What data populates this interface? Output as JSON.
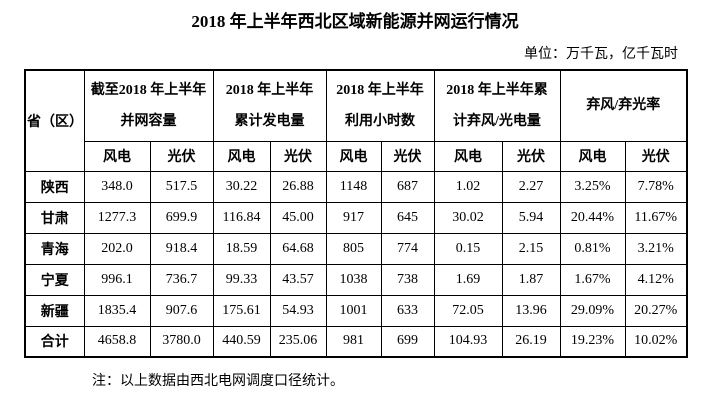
{
  "title": "2018 年上半年西北区域新能源并网运行情况",
  "unit_note": "单位：万千瓦，亿千瓦时",
  "footnote": "注：以上数据由西北电网调度口径统计。",
  "colors": {
    "text": "#000000",
    "border": "#000000",
    "background": "#ffffff"
  },
  "table": {
    "corner_header": "省（区）",
    "groups": [
      {
        "label": "截至2018 年上半年并网容量",
        "line1": "截至2018 年上半年",
        "line2": "并网容量"
      },
      {
        "label": "2018 年上半年累计发电量",
        "line1": "2018 年上半年",
        "line2": "累计发电量"
      },
      {
        "label": "2018 年上半年利用小时数",
        "line1": "2018 年上半年",
        "line2": "利用小时数"
      },
      {
        "label": "2018 年上半年累计弃风/光电量",
        "line1": "2018 年上半年累",
        "line2": "计弃风/光电量"
      },
      {
        "label": "弃风/弃光率",
        "line1": "弃风/弃光率",
        "line2": ""
      }
    ],
    "sub_headers": [
      "风电",
      "光伏"
    ],
    "rows": [
      {
        "province": "陕西",
        "values": [
          "348.0",
          "517.5",
          "30.22",
          "26.88",
          "1148",
          "687",
          "1.02",
          "2.27",
          "3.25%",
          "7.78%"
        ]
      },
      {
        "province": "甘肃",
        "values": [
          "1277.3",
          "699.9",
          "116.84",
          "45.00",
          "917",
          "645",
          "30.02",
          "5.94",
          "20.44%",
          "11.67%"
        ]
      },
      {
        "province": "青海",
        "values": [
          "202.0",
          "918.4",
          "18.59",
          "64.68",
          "805",
          "774",
          "0.15",
          "2.15",
          "0.81%",
          "3.21%"
        ]
      },
      {
        "province": "宁夏",
        "values": [
          "996.1",
          "736.7",
          "99.33",
          "43.57",
          "1038",
          "738",
          "1.69",
          "1.87",
          "1.67%",
          "4.12%"
        ]
      },
      {
        "province": "新疆",
        "values": [
          "1835.4",
          "907.6",
          "175.61",
          "54.93",
          "1001",
          "633",
          "72.05",
          "13.96",
          "29.09%",
          "20.27%"
        ]
      },
      {
        "province": "合计",
        "values": [
          "4658.8",
          "3780.0",
          "440.59",
          "235.06",
          "981",
          "699",
          "104.93",
          "26.19",
          "19.23%",
          "10.02%"
        ]
      }
    ]
  }
}
